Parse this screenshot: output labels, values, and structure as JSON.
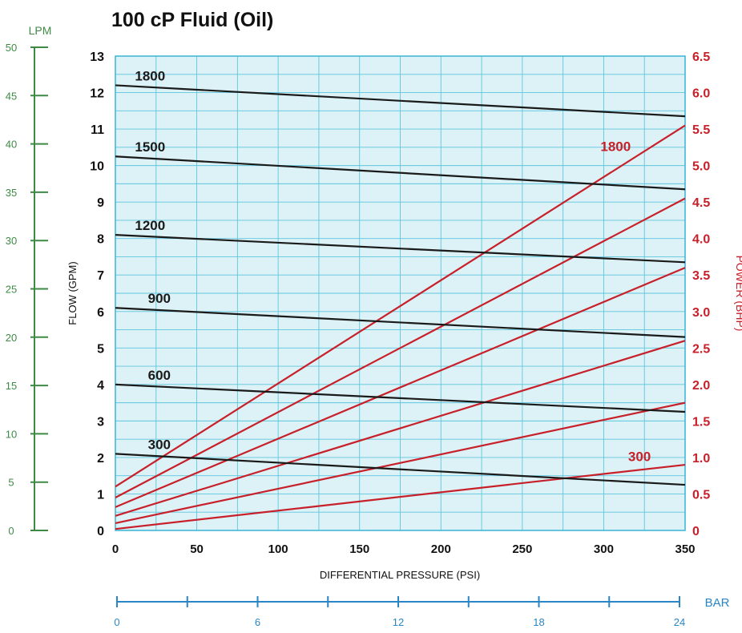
{
  "chart_data": {
    "type": "line",
    "title": "100 cP Fluid (Oil)",
    "xlabel": "DIFFERENTIAL PRESSURE (PSI)",
    "ylabel_left": "FLOW (GPM)",
    "ylabel_right": "POWER (BHP)",
    "lpm_label": "LPM",
    "bar_label": "BAR",
    "xlim": [
      0,
      350
    ],
    "ylim": [
      0,
      13
    ],
    "y2lim": [
      0,
      6.5
    ],
    "lpm_lim": [
      0,
      50
    ],
    "bar_lim": [
      0,
      24
    ],
    "x_ticks": [
      "0",
      "50",
      "100",
      "150",
      "200",
      "250",
      "300",
      "350"
    ],
    "y_ticks": [
      "0",
      "1",
      "2",
      "3",
      "4",
      "5",
      "6",
      "7",
      "8",
      "9",
      "10",
      "11",
      "12",
      "13"
    ],
    "y2_ticks": [
      "0",
      "0.5",
      "1.0",
      "1.5",
      "2.0",
      "2.5",
      "3.0",
      "3.5",
      "4.0",
      "4.5",
      "5.0",
      "5.5",
      "6.0",
      "6.5"
    ],
    "lpm_ticks": [
      "0",
      "5",
      "10",
      "15",
      "20",
      "25",
      "30",
      "35",
      "40",
      "45",
      "50"
    ],
    "bar_ticks": [
      "0",
      "6",
      "12",
      "18",
      "24"
    ],
    "grid": true,
    "flow_series": [
      {
        "name": "1800",
        "x": [
          0,
          350
        ],
        "y": [
          12.2,
          11.35
        ]
      },
      {
        "name": "1500",
        "x": [
          0,
          350
        ],
        "y": [
          10.25,
          9.35
        ]
      },
      {
        "name": "1200",
        "x": [
          0,
          350
        ],
        "y": [
          8.1,
          7.35
        ]
      },
      {
        "name": "900",
        "x": [
          0,
          350
        ],
        "y": [
          6.1,
          5.3
        ]
      },
      {
        "name": "600",
        "x": [
          0,
          350
        ],
        "y": [
          4.0,
          3.25
        ]
      },
      {
        "name": "300",
        "x": [
          0,
          350
        ],
        "y": [
          2.1,
          1.25
        ]
      }
    ],
    "power_series": [
      {
        "name": "1800",
        "x": [
          0,
          350
        ],
        "y": [
          0.6,
          5.55
        ]
      },
      {
        "x": [
          0,
          350
        ],
        "y": [
          0.45,
          4.55
        ]
      },
      {
        "x": [
          0,
          350
        ],
        "y": [
          0.32,
          3.6
        ]
      },
      {
        "x": [
          0,
          350
        ],
        "y": [
          0.2,
          2.6
        ]
      },
      {
        "x": [
          0,
          350
        ],
        "y": [
          0.1,
          1.75
        ]
      },
      {
        "name": "300",
        "x": [
          0,
          350
        ],
        "y": [
          0.02,
          0.9
        ]
      }
    ],
    "colors": {
      "flow": "#1a1a1a",
      "power": "#c8202a",
      "lpm": "#3e8a45",
      "bar": "#2a86c4",
      "plot_bg": "#dcf2f6",
      "grid": "#5fc6de",
      "frame": "#3ab3d6"
    }
  }
}
